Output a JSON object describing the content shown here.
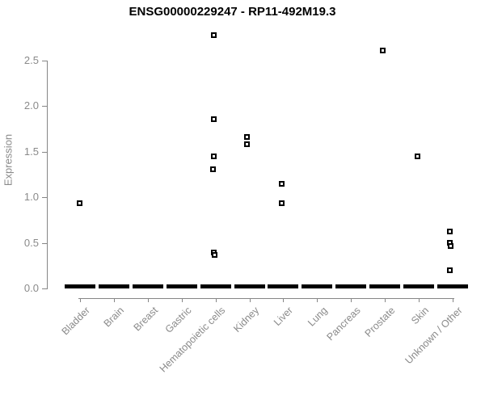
{
  "title": "ENSG00000229247 - RP11-492M19.3",
  "chart_data": {
    "type": "scatter",
    "title": "ENSG00000229247 - RP11-492M19.3",
    "xlabel": "",
    "ylabel": "Expression",
    "categories": [
      "Bladder",
      "Brain",
      "Breast",
      "Gastric",
      "Hematopoietic cells",
      "Kidney",
      "Liver",
      "Lung",
      "Pancreas",
      "Prostate",
      "Skin",
      "Unknown / Other"
    ],
    "ytick_labels": [
      "0.0",
      "0.5",
      "1.0",
      "1.5",
      "2.0",
      "2.5"
    ],
    "ylim": [
      0,
      2.8
    ],
    "grid": false,
    "legend": "none",
    "marker": "open-square",
    "points": [
      {
        "category": "Bladder",
        "value": 0.94,
        "jitter": -1
      },
      {
        "category": "Hematopoietic cells",
        "value": 2.78,
        "jitter": -2
      },
      {
        "category": "Hematopoietic cells",
        "value": 1.86,
        "jitter": -2
      },
      {
        "category": "Hematopoietic cells",
        "value": 1.45,
        "jitter": -2
      },
      {
        "category": "Hematopoietic cells",
        "value": 1.31,
        "jitter": -3
      },
      {
        "category": "Hematopoietic cells",
        "value": 0.4,
        "jitter": -2
      },
      {
        "category": "Hematopoietic cells",
        "value": 0.37,
        "jitter": -1
      },
      {
        "category": "Kidney",
        "value": 1.66,
        "jitter": -3
      },
      {
        "category": "Kidney",
        "value": 1.58,
        "jitter": -3
      },
      {
        "category": "Liver",
        "value": 1.15,
        "jitter": -2
      },
      {
        "category": "Liver",
        "value": 0.94,
        "jitter": -2
      },
      {
        "category": "Prostate",
        "value": 2.61,
        "jitter": -3
      },
      {
        "category": "Skin",
        "value": 1.45,
        "jitter": -2
      },
      {
        "category": "Unknown / Other",
        "value": 0.63,
        "jitter": -3
      },
      {
        "category": "Unknown / Other",
        "value": 0.5,
        "jitter": -3
      },
      {
        "category": "Unknown / Other",
        "value": 0.47,
        "jitter": -2
      },
      {
        "category": "Unknown / Other",
        "value": 0.2,
        "jitter": -3
      }
    ],
    "zero_cluster_categories": [
      "Bladder",
      "Brain",
      "Breast",
      "Gastric",
      "Hematopoietic cells",
      "Kidney",
      "Liver",
      "Lung",
      "Pancreas",
      "Prostate",
      "Skin",
      "Unknown / Other"
    ],
    "colors": {
      "points": "#000000",
      "axis": "#868686",
      "tick_labels": "#8a8a8a",
      "title": "#000000",
      "background": "#ffffff"
    }
  }
}
